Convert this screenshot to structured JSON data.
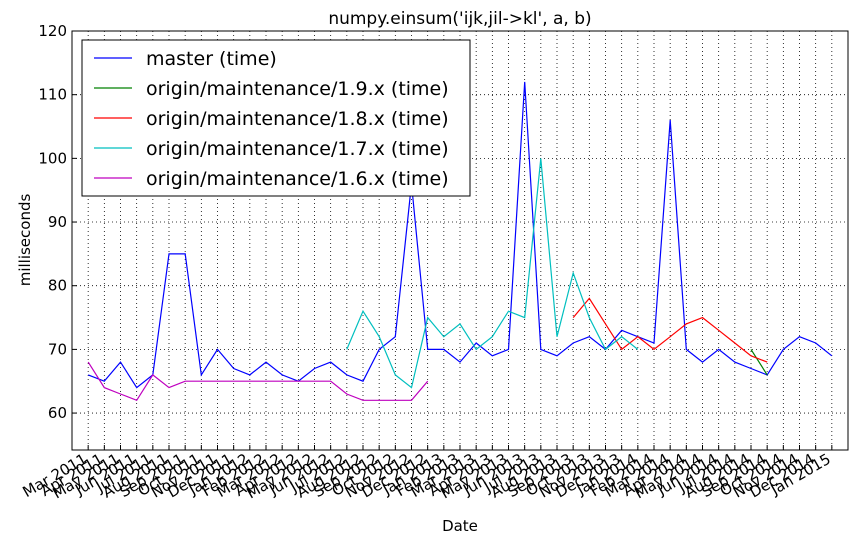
{
  "chart_data": {
    "type": "line",
    "title": "numpy.einsum('ijk,jil->kl', a, b)",
    "x_label": "Date",
    "y_label": "milliseconds",
    "grid": true,
    "legend": "upper-left",
    "xlim": [
      "2011-02",
      "2015-02"
    ],
    "ylim": [
      54.2,
      120
    ],
    "yticks": [
      60,
      70,
      80,
      90,
      100,
      110,
      120
    ],
    "xticks": [
      {
        "value": "2011-03",
        "label": "Mar 2011"
      },
      {
        "value": "2011-04",
        "label": "Apr 2011"
      },
      {
        "value": "2011-05",
        "label": "May 2011"
      },
      {
        "value": "2011-06",
        "label": "Jun 2011"
      },
      {
        "value": "2011-07",
        "label": "Jul 2011"
      },
      {
        "value": "2011-08",
        "label": "Aug 2011"
      },
      {
        "value": "2011-09",
        "label": "Sep 2011"
      },
      {
        "value": "2011-10",
        "label": "Oct 2011"
      },
      {
        "value": "2011-11",
        "label": "Nov 2011"
      },
      {
        "value": "2011-12",
        "label": "Dec 2011"
      },
      {
        "value": "2012-01",
        "label": "Jan 2012"
      },
      {
        "value": "2012-02",
        "label": "Feb 2012"
      },
      {
        "value": "2012-03",
        "label": "Mar 2012"
      },
      {
        "value": "2012-04",
        "label": "Apr 2012"
      },
      {
        "value": "2012-05",
        "label": "May 2012"
      },
      {
        "value": "2012-06",
        "label": "Jun 2012"
      },
      {
        "value": "2012-07",
        "label": "Jul 2012"
      },
      {
        "value": "2012-08",
        "label": "Aug 2012"
      },
      {
        "value": "2012-09",
        "label": "Sep 2012"
      },
      {
        "value": "2012-10",
        "label": "Oct 2012"
      },
      {
        "value": "2012-11",
        "label": "Nov 2012"
      },
      {
        "value": "2012-12",
        "label": "Dec 2012"
      },
      {
        "value": "2013-01",
        "label": "Jan 2013"
      },
      {
        "value": "2013-02",
        "label": "Feb 2013"
      },
      {
        "value": "2013-03",
        "label": "Mar 2013"
      },
      {
        "value": "2013-04",
        "label": "Apr 2013"
      },
      {
        "value": "2013-05",
        "label": "May 2013"
      },
      {
        "value": "2013-06",
        "label": "Jun 2013"
      },
      {
        "value": "2013-07",
        "label": "Jul 2013"
      },
      {
        "value": "2013-08",
        "label": "Aug 2013"
      },
      {
        "value": "2013-09",
        "label": "Sep 2013"
      },
      {
        "value": "2013-10",
        "label": "Oct 2013"
      },
      {
        "value": "2013-11",
        "label": "Nov 2013"
      },
      {
        "value": "2013-12",
        "label": "Dec 2013"
      },
      {
        "value": "2014-01",
        "label": "Jan 2014"
      },
      {
        "value": "2014-02",
        "label": "Feb 2014"
      },
      {
        "value": "2014-03",
        "label": "Mar 2014"
      },
      {
        "value": "2014-04",
        "label": "Apr 2014"
      },
      {
        "value": "2014-05",
        "label": "May 2014"
      },
      {
        "value": "2014-06",
        "label": "Jun 2014"
      },
      {
        "value": "2014-07",
        "label": "Jul 2014"
      },
      {
        "value": "2014-08",
        "label": "Aug 2014"
      },
      {
        "value": "2014-09",
        "label": "Sep 2014"
      },
      {
        "value": "2014-10",
        "label": "Oct 2014"
      },
      {
        "value": "2014-11",
        "label": "Nov 2014"
      },
      {
        "value": "2014-12",
        "label": "Dec 2014"
      },
      {
        "value": "2015-01",
        "label": "Jan 2015"
      }
    ],
    "series": [
      {
        "name": "master (time)",
        "color": "#0000ff",
        "x": [
          "2011-03",
          "2011-04",
          "2011-05",
          "2011-06",
          "2011-07",
          "2011-08",
          "2011-09",
          "2011-10",
          "2011-11",
          "2011-12",
          "2012-01",
          "2012-02",
          "2012-03",
          "2012-04",
          "2012-05",
          "2012-06",
          "2012-07",
          "2012-08",
          "2012-09",
          "2012-10",
          "2012-11",
          "2012-12",
          "2013-01",
          "2013-02",
          "2013-03",
          "2013-04",
          "2013-05",
          "2013-06",
          "2013-07",
          "2013-08",
          "2013-09",
          "2013-10",
          "2013-11",
          "2013-12",
          "2014-01",
          "2014-02",
          "2014-03",
          "2014-04",
          "2014-05",
          "2014-06",
          "2014-07",
          "2014-08",
          "2014-09",
          "2014-10",
          "2014-11",
          "2014-12",
          "2015-01"
        ],
        "values": [
          66,
          65,
          68,
          64,
          66,
          85,
          85,
          66,
          70,
          67,
          66,
          68,
          66,
          65,
          67,
          68,
          66,
          65,
          70,
          72,
          96,
          70,
          70,
          68,
          71,
          69,
          70,
          112,
          70,
          69,
          71,
          72,
          70,
          73,
          72,
          71,
          106,
          70,
          68,
          70,
          68,
          67,
          66,
          70,
          72,
          71,
          69
        ]
      },
      {
        "name": "origin/maintenance/1.9.x (time)",
        "color": "#008000",
        "x": [
          "2014-08",
          "2014-09"
        ],
        "values": [
          70,
          66
        ]
      },
      {
        "name": "origin/maintenance/1.8.x (time)",
        "color": "#ff0000",
        "x": [
          "2013-09",
          "2013-10",
          "2013-11",
          "2013-12",
          "2014-01",
          "2014-02",
          "2014-03",
          "2014-04",
          "2014-05",
          "2014-06",
          "2014-07",
          "2014-08",
          "2014-09"
        ],
        "values": [
          75,
          78,
          74,
          70,
          72,
          70,
          72,
          74,
          75,
          73,
          71,
          69,
          68
        ]
      },
      {
        "name": "origin/maintenance/1.7.x (time)",
        "color": "#00bfbf",
        "x": [
          "2012-07",
          "2012-08",
          "2012-09",
          "2012-10",
          "2012-11",
          "2012-12",
          "2013-01",
          "2013-02",
          "2013-03",
          "2013-04",
          "2013-05",
          "2013-06",
          "2013-07",
          "2013-08",
          "2013-09",
          "2013-10",
          "2013-11",
          "2013-12",
          "2014-01"
        ],
        "values": [
          70,
          76,
          72,
          66,
          64,
          75,
          72,
          74,
          70,
          72,
          76,
          75,
          100,
          72,
          82,
          75,
          70,
          72,
          70
        ]
      },
      {
        "name": "origin/maintenance/1.6.x (time)",
        "color": "#bf00bf",
        "x": [
          "2011-03",
          "2011-04",
          "2011-05",
          "2011-06",
          "2011-07",
          "2011-08",
          "2011-09",
          "2011-10",
          "2011-11",
          "2011-12",
          "2012-01",
          "2012-02",
          "2012-03",
          "2012-04",
          "2012-05",
          "2012-06",
          "2012-07",
          "2012-08",
          "2012-09",
          "2012-10",
          "2012-11",
          "2012-12"
        ],
        "values": [
          68,
          64,
          63,
          62,
          66,
          64,
          65,
          65,
          65,
          65,
          65,
          65,
          65,
          65,
          65,
          65,
          63,
          62,
          62,
          62,
          62,
          65
        ]
      }
    ]
  }
}
